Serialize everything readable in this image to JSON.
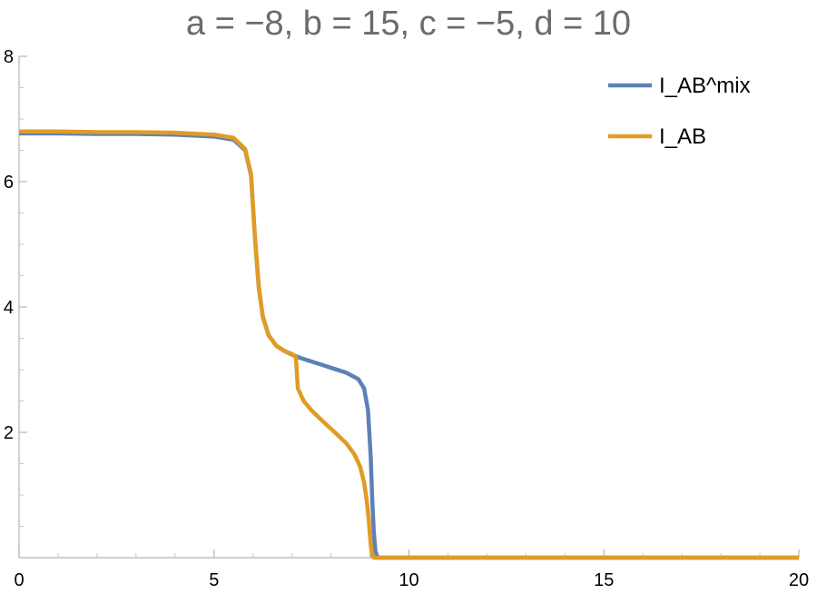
{
  "chart_data": {
    "type": "line",
    "title": "a = −8, b = 15, c = −5, d = 10",
    "xlabel": "",
    "ylabel": "",
    "xlim": [
      0,
      20
    ],
    "ylim": [
      0,
      8
    ],
    "x_ticks": [
      0,
      5,
      10,
      15,
      20
    ],
    "x_tick_labels": [
      "0",
      "5",
      "10",
      "15",
      "20"
    ],
    "y_ticks": [
      2,
      4,
      6,
      8
    ],
    "y_tick_labels": [
      "2",
      "4",
      "6",
      "8"
    ],
    "grid": false,
    "legend_position": "top-right",
    "series": [
      {
        "name": "I_AB^mix",
        "color": "#5e81b5",
        "x": [
          0,
          1,
          2,
          3,
          4,
          5,
          5.5,
          5.8,
          5.95,
          6.05,
          6.15,
          6.25,
          6.4,
          6.6,
          6.8,
          7.0,
          7.2,
          7.5,
          7.8,
          8.1,
          8.4,
          8.7,
          8.85,
          8.95,
          9.02,
          9.06,
          9.1,
          9.14,
          9.2,
          10,
          12,
          14,
          16,
          18,
          20
        ],
        "y": [
          6.77,
          6.77,
          6.76,
          6.76,
          6.75,
          6.72,
          6.67,
          6.5,
          6.1,
          5.1,
          4.3,
          3.85,
          3.55,
          3.38,
          3.3,
          3.24,
          3.19,
          3.13,
          3.07,
          3.01,
          2.95,
          2.85,
          2.7,
          2.35,
          1.6,
          0.9,
          0.4,
          0.1,
          0.0,
          0.0,
          0.0,
          0.0,
          0.0,
          0.0,
          0.0
        ]
      },
      {
        "name": "I_AB",
        "color": "#e19c24",
        "x": [
          0,
          1,
          2,
          3,
          4,
          5,
          5.5,
          5.8,
          5.95,
          6.05,
          6.15,
          6.25,
          6.4,
          6.6,
          6.8,
          7.0,
          7.1,
          7.15,
          7.3,
          7.5,
          7.8,
          8.1,
          8.4,
          8.6,
          8.75,
          8.85,
          8.92,
          8.97,
          9.0,
          9.03,
          9.06,
          9.1,
          10,
          12,
          14,
          16,
          18,
          20
        ],
        "y": [
          6.8,
          6.8,
          6.79,
          6.79,
          6.78,
          6.75,
          6.7,
          6.52,
          6.12,
          5.12,
          4.32,
          3.85,
          3.55,
          3.38,
          3.3,
          3.25,
          3.2,
          2.7,
          2.5,
          2.35,
          2.17,
          2.0,
          1.82,
          1.65,
          1.45,
          1.2,
          0.9,
          0.6,
          0.35,
          0.15,
          0.03,
          0.0,
          0.0,
          0.0,
          0.0,
          0.0,
          0.0,
          0.0
        ]
      }
    ]
  }
}
